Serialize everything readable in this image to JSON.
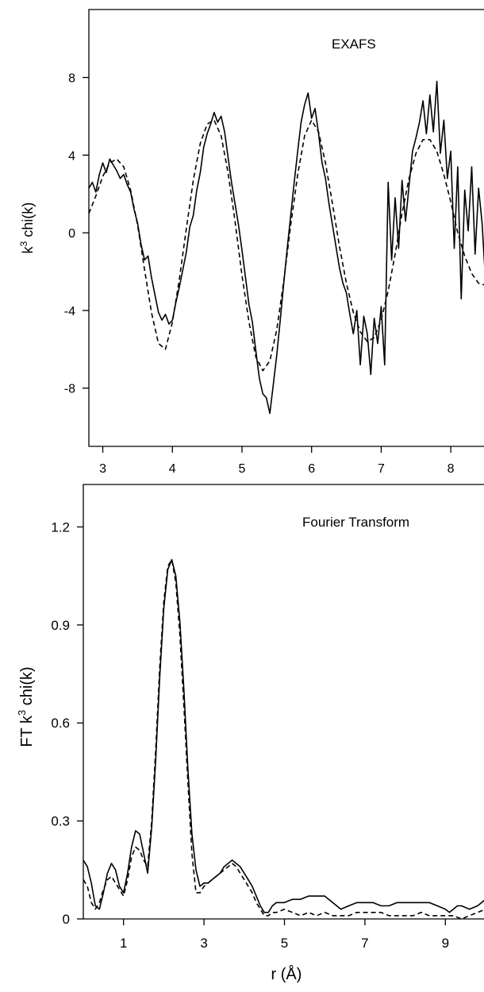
{
  "chart_data": [
    {
      "type": "line",
      "title": "EXAFS",
      "xlabel": "",
      "ylabel": "k³ chi(k)",
      "ylabel_base": "k",
      "ylabel_sup": "3",
      "ylabel_rest": " chi(k)",
      "xlim": [
        2.8,
        8.5
      ],
      "ylim": [
        -11,
        11.5
      ],
      "xticks": [
        3,
        4,
        5,
        6,
        7,
        8
      ],
      "xtick_labels": [
        "3",
        "4",
        "5",
        "6",
        "7",
        "8"
      ],
      "yticks": [
        8,
        4,
        0,
        -4,
        -8
      ],
      "ytick_labels": [
        "8",
        "4",
        "0",
        "-4",
        "-8"
      ],
      "grid": false,
      "legend": "none",
      "series": [
        {
          "style": "solid",
          "x": [
            2.8,
            2.85,
            2.9,
            2.95,
            3.0,
            3.05,
            3.1,
            3.15,
            3.2,
            3.25,
            3.3,
            3.35,
            3.4,
            3.45,
            3.5,
            3.55,
            3.6,
            3.65,
            3.7,
            3.75,
            3.8,
            3.85,
            3.9,
            3.95,
            4.0,
            4.05,
            4.1,
            4.15,
            4.2,
            4.25,
            4.3,
            4.35,
            4.4,
            4.45,
            4.5,
            4.55,
            4.6,
            4.65,
            4.7,
            4.75,
            4.8,
            4.85,
            4.9,
            4.95,
            5.0,
            5.05,
            5.1,
            5.15,
            5.2,
            5.25,
            5.3,
            5.35,
            5.4,
            5.45,
            5.5,
            5.55,
            5.6,
            5.65,
            5.7,
            5.75,
            5.8,
            5.85,
            5.9,
            5.95,
            6.0,
            6.05,
            6.1,
            6.15,
            6.2,
            6.25,
            6.3,
            6.35,
            6.4,
            6.45,
            6.5,
            6.55,
            6.6,
            6.65,
            6.7,
            6.75,
            6.8,
            6.85,
            6.9,
            6.95,
            7.0,
            7.05,
            7.1,
            7.15,
            7.2,
            7.25,
            7.3,
            7.35,
            7.4,
            7.45,
            7.5,
            7.55,
            7.6,
            7.65,
            7.7,
            7.75,
            7.8,
            7.85,
            7.9,
            7.95,
            8.0,
            8.05,
            8.1,
            8.15,
            8.2,
            8.25,
            8.3,
            8.35,
            8.4,
            8.45,
            8.5
          ],
          "y": [
            2.3,
            2.6,
            2.1,
            3.0,
            3.6,
            3.1,
            3.8,
            3.5,
            3.2,
            2.8,
            3.0,
            2.5,
            2.1,
            1.2,
            0.5,
            -0.6,
            -1.4,
            -1.2,
            -2.3,
            -3.2,
            -4.1,
            -4.5,
            -4.2,
            -4.7,
            -4.5,
            -3.6,
            -2.8,
            -1.9,
            -1.0,
            0.3,
            0.9,
            2.2,
            3.1,
            4.4,
            5.1,
            5.6,
            6.2,
            5.7,
            6.0,
            5.2,
            3.9,
            2.6,
            1.5,
            0.4,
            -0.9,
            -2.3,
            -3.7,
            -4.6,
            -6.1,
            -7.5,
            -8.3,
            -8.5,
            -9.3,
            -7.8,
            -6.3,
            -4.5,
            -2.6,
            -0.8,
            0.9,
            2.6,
            4.2,
            5.7,
            6.6,
            7.2,
            5.9,
            6.4,
            5.1,
            3.6,
            2.8,
            1.5,
            0.4,
            -0.7,
            -1.8,
            -2.6,
            -3.1,
            -4.2,
            -5.2,
            -4.0,
            -6.8,
            -4.3,
            -5.2,
            -7.3,
            -4.4,
            -5.7,
            -3.8,
            -6.8,
            2.6,
            -1.4,
            1.8,
            -0.8,
            2.7,
            0.6,
            2.4,
            4.2,
            4.9,
            5.7,
            6.8,
            5.1,
            7.1,
            5.2,
            7.8,
            4.1,
            5.8,
            2.8,
            4.2,
            -0.8,
            3.4,
            -3.4,
            2.2,
            0.1,
            3.4,
            -1.1,
            2.3,
            0.5,
            -2.6
          ],
          "color": "#000000"
        },
        {
          "style": "dashed",
          "x": [
            2.8,
            2.9,
            3.0,
            3.1,
            3.2,
            3.3,
            3.4,
            3.5,
            3.6,
            3.7,
            3.8,
            3.9,
            4.0,
            4.1,
            4.2,
            4.3,
            4.4,
            4.5,
            4.6,
            4.7,
            4.8,
            4.9,
            5.0,
            5.1,
            5.2,
            5.3,
            5.4,
            5.5,
            5.6,
            5.7,
            5.8,
            5.9,
            6.0,
            6.1,
            6.2,
            6.3,
            6.4,
            6.5,
            6.6,
            6.7,
            6.8,
            6.9,
            7.0,
            7.1,
            7.2,
            7.3,
            7.4,
            7.5,
            7.6,
            7.7,
            7.8,
            7.9,
            8.0,
            8.1,
            8.2,
            8.3,
            8.4,
            8.5
          ],
          "y": [
            1.0,
            1.9,
            2.9,
            3.6,
            3.8,
            3.4,
            2.2,
            0.4,
            -1.9,
            -4.1,
            -5.7,
            -6.0,
            -4.6,
            -2.4,
            0.2,
            2.7,
            4.6,
            5.6,
            5.8,
            5.0,
            3.1,
            0.6,
            -2.2,
            -4.6,
            -6.4,
            -7.1,
            -6.6,
            -5.0,
            -2.5,
            0.4,
            3.0,
            5.0,
            5.8,
            5.2,
            3.6,
            1.5,
            -0.7,
            -2.6,
            -4.1,
            -5.1,
            -5.6,
            -5.4,
            -4.5,
            -3.0,
            -1.1,
            1.0,
            2.8,
            4.1,
            4.8,
            4.8,
            4.2,
            3.0,
            1.6,
            0.0,
            -1.2,
            -2.1,
            -2.6,
            -2.7
          ],
          "color": "#000000"
        }
      ]
    },
    {
      "type": "line",
      "title": "Fourier Transform",
      "xlabel": "r (Å)",
      "ylabel": "FT k³ chi(k)",
      "ylabel_base": "FT k",
      "ylabel_sup": "3",
      "ylabel_rest": " chi(k)",
      "xlim": [
        0,
        10
      ],
      "ylim": [
        0,
        1.33
      ],
      "xticks": [
        1,
        3,
        5,
        7,
        9
      ],
      "xtick_labels": [
        "1",
        "3",
        "5",
        "7",
        "9"
      ],
      "yticks": [
        0,
        0.3,
        0.6,
        0.9,
        1.2
      ],
      "ytick_labels": [
        "0",
        "0.3",
        "0.6",
        "0.9",
        "1.2"
      ],
      "grid": false,
      "legend": "none",
      "series": [
        {
          "style": "solid",
          "x": [
            0.0,
            0.1,
            0.2,
            0.3,
            0.4,
            0.5,
            0.6,
            0.7,
            0.8,
            0.9,
            1.0,
            1.1,
            1.2,
            1.3,
            1.4,
            1.5,
            1.6,
            1.7,
            1.8,
            1.9,
            2.0,
            2.1,
            2.2,
            2.3,
            2.4,
            2.5,
            2.6,
            2.7,
            2.8,
            2.9,
            3.0,
            3.1,
            3.2,
            3.3,
            3.4,
            3.5,
            3.6,
            3.7,
            3.8,
            3.9,
            4.0,
            4.1,
            4.2,
            4.3,
            4.4,
            4.5,
            4.6,
            4.7,
            4.8,
            5.0,
            5.2,
            5.4,
            5.6,
            5.8,
            6.0,
            6.2,
            6.4,
            6.6,
            6.8,
            7.0,
            7.2,
            7.4,
            7.6,
            7.8,
            8.0,
            8.2,
            8.4,
            8.6,
            8.8,
            9.0,
            9.1,
            9.2,
            9.3,
            9.4,
            9.6,
            9.8,
            10.0
          ],
          "y": [
            0.18,
            0.16,
            0.11,
            0.04,
            0.03,
            0.08,
            0.14,
            0.17,
            0.15,
            0.1,
            0.08,
            0.14,
            0.22,
            0.27,
            0.26,
            0.2,
            0.14,
            0.28,
            0.49,
            0.74,
            0.95,
            1.07,
            1.1,
            1.05,
            0.91,
            0.7,
            0.46,
            0.26,
            0.15,
            0.1,
            0.11,
            0.11,
            0.12,
            0.13,
            0.14,
            0.16,
            0.17,
            0.18,
            0.17,
            0.16,
            0.14,
            0.12,
            0.1,
            0.07,
            0.04,
            0.02,
            0.02,
            0.04,
            0.05,
            0.05,
            0.06,
            0.06,
            0.07,
            0.07,
            0.07,
            0.05,
            0.03,
            0.04,
            0.05,
            0.05,
            0.05,
            0.04,
            0.04,
            0.05,
            0.05,
            0.05,
            0.05,
            0.05,
            0.04,
            0.03,
            0.02,
            0.03,
            0.04,
            0.04,
            0.03,
            0.04,
            0.06
          ],
          "color": "#000000"
        },
        {
          "style": "dashed",
          "x": [
            0.0,
            0.1,
            0.2,
            0.3,
            0.4,
            0.5,
            0.6,
            0.7,
            0.8,
            0.9,
            1.0,
            1.1,
            1.2,
            1.3,
            1.4,
            1.5,
            1.6,
            1.7,
            1.8,
            1.9,
            2.0,
            2.1,
            2.2,
            2.3,
            2.4,
            2.5,
            2.6,
            2.7,
            2.8,
            2.9,
            3.0,
            3.1,
            3.2,
            3.3,
            3.4,
            3.5,
            3.6,
            3.7,
            3.8,
            3.9,
            4.0,
            4.1,
            4.2,
            4.3,
            4.4,
            4.5,
            4.6,
            4.7,
            4.8,
            5.0,
            5.2,
            5.4,
            5.6,
            5.8,
            6.0,
            6.2,
            6.4,
            6.6,
            6.8,
            7.0,
            7.2,
            7.4,
            7.6,
            7.8,
            8.0,
            8.2,
            8.4,
            8.6,
            8.8,
            9.0,
            9.2,
            9.4,
            9.6,
            9.8,
            10.0
          ],
          "y": [
            0.12,
            0.1,
            0.05,
            0.03,
            0.05,
            0.09,
            0.12,
            0.13,
            0.11,
            0.09,
            0.07,
            0.12,
            0.19,
            0.22,
            0.21,
            0.18,
            0.16,
            0.3,
            0.52,
            0.77,
            0.97,
            1.08,
            1.1,
            1.03,
            0.87,
            0.65,
            0.42,
            0.2,
            0.08,
            0.08,
            0.1,
            0.11,
            0.12,
            0.13,
            0.14,
            0.15,
            0.16,
            0.17,
            0.16,
            0.14,
            0.12,
            0.1,
            0.08,
            0.05,
            0.03,
            0.01,
            0.01,
            0.02,
            0.02,
            0.03,
            0.02,
            0.01,
            0.02,
            0.01,
            0.02,
            0.01,
            0.01,
            0.01,
            0.02,
            0.02,
            0.02,
            0.02,
            0.01,
            0.01,
            0.01,
            0.01,
            0.02,
            0.01,
            0.01,
            0.01,
            0.01,
            0.0,
            0.01,
            0.02,
            0.03
          ],
          "color": "#000000"
        }
      ]
    }
  ]
}
